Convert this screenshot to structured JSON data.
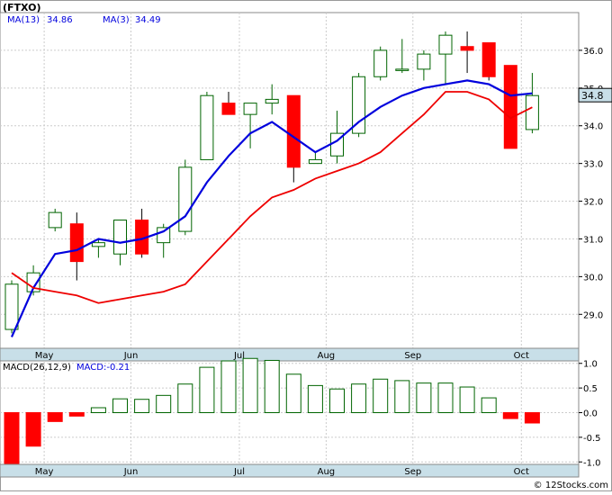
{
  "header": {
    "ticker_label": "(FTXO)",
    "ma13_label": "MA(13)",
    "ma13_value": "34.86",
    "ma3_label": "MA(3)",
    "ma3_value": "34.49"
  },
  "price_badge": "34.8",
  "macd_header": {
    "label": "MACD(26,12,9)",
    "value_label": "MACD:-0.21"
  },
  "watermark": "© 12Stocks.com",
  "colors": {
    "up_body": "#ffffff",
    "up_border": "#006400",
    "down_body": "#ff0000",
    "ma13": "#0000dd",
    "ma3": "#ee0000",
    "axis_band": "#c8dfe8",
    "grid": "#cccccc",
    "badge_bg": "#c8dfe8"
  },
  "chart_data": [
    {
      "type": "candlestick",
      "title": "(FTXO)",
      "ylim": [
        28.1,
        37.0
      ],
      "y_ticks": [
        29.0,
        30.0,
        31.0,
        32.0,
        33.0,
        34.0,
        35.0,
        36.0
      ],
      "y_tick_labels": [
        "29.0",
        "30.0",
        "31.0",
        "32.0",
        "33.0",
        "34.0",
        "35.0",
        "36.0"
      ],
      "x_labels": [
        "May",
        "Jun",
        "Jul",
        "Aug",
        "Sep",
        "Oct"
      ],
      "x_label_index": [
        1,
        5,
        10,
        14,
        18,
        23
      ],
      "candles": [
        {
          "o": 28.6,
          "h": 29.9,
          "l": 28.5,
          "c": 29.8
        },
        {
          "o": 29.6,
          "h": 30.3,
          "l": 29.5,
          "c": 30.1
        },
        {
          "o": 31.3,
          "h": 31.8,
          "l": 31.2,
          "c": 31.7
        },
        {
          "o": 31.4,
          "h": 31.7,
          "l": 29.9,
          "c": 30.4
        },
        {
          "o": 30.8,
          "h": 31.0,
          "l": 30.5,
          "c": 30.9
        },
        {
          "o": 30.6,
          "h": 31.5,
          "l": 30.3,
          "c": 31.5
        },
        {
          "o": 31.5,
          "h": 31.8,
          "l": 30.5,
          "c": 30.6
        },
        {
          "o": 30.9,
          "h": 31.4,
          "l": 30.5,
          "c": 31.3
        },
        {
          "o": 31.2,
          "h": 33.1,
          "l": 31.1,
          "c": 32.9
        },
        {
          "o": 33.1,
          "h": 34.9,
          "l": 33.1,
          "c": 34.8
        },
        {
          "o": 34.6,
          "h": 34.9,
          "l": 34.3,
          "c": 34.3
        },
        {
          "o": 34.3,
          "h": 34.6,
          "l": 33.4,
          "c": 34.6
        },
        {
          "o": 34.6,
          "h": 35.1,
          "l": 34.3,
          "c": 34.7
        },
        {
          "o": 34.8,
          "h": 34.8,
          "l": 32.5,
          "c": 32.9
        },
        {
          "o": 33.0,
          "h": 33.3,
          "l": 33.0,
          "c": 33.1
        },
        {
          "o": 33.2,
          "h": 34.4,
          "l": 33.0,
          "c": 33.8
        },
        {
          "o": 33.8,
          "h": 35.4,
          "l": 33.7,
          "c": 35.3
        },
        {
          "o": 35.3,
          "h": 36.1,
          "l": 35.2,
          "c": 36.0
        },
        {
          "o": 35.5,
          "h": 36.3,
          "l": 35.4,
          "c": 35.5
        },
        {
          "o": 35.5,
          "h": 36.0,
          "l": 35.2,
          "c": 35.9
        },
        {
          "o": 35.9,
          "h": 36.5,
          "l": 35.1,
          "c": 36.4
        },
        {
          "o": 36.1,
          "h": 36.5,
          "l": 35.4,
          "c": 36.0
        },
        {
          "o": 36.2,
          "h": 36.2,
          "l": 35.2,
          "c": 35.3
        },
        {
          "o": 35.6,
          "h": 35.6,
          "l": 33.4,
          "c": 33.4
        },
        {
          "o": 33.9,
          "h": 35.4,
          "l": 33.8,
          "c": 34.8
        }
      ],
      "ma13": [
        28.4,
        29.7,
        30.6,
        30.7,
        31.0,
        30.9,
        31.0,
        31.2,
        31.6,
        32.5,
        33.2,
        33.8,
        34.1,
        33.7,
        33.3,
        33.6,
        34.1,
        34.5,
        34.8,
        35.0,
        35.1,
        35.2,
        35.1,
        34.8,
        34.86
      ],
      "ma3": [
        30.1,
        29.7,
        29.6,
        29.5,
        29.3,
        29.4,
        29.5,
        29.6,
        29.8,
        30.4,
        31.0,
        31.6,
        32.1,
        32.3,
        32.6,
        32.8,
        33.0,
        33.3,
        33.8,
        34.3,
        34.9,
        34.9,
        34.7,
        34.2,
        34.49
      ],
      "ma13_start_index": 0,
      "ma3_start_index": 0
    },
    {
      "type": "bar",
      "title": "MACD(26,12,9)",
      "ylim": [
        -1.05,
        1.05
      ],
      "y_ticks": [
        -1.0,
        -0.5,
        0.0,
        0.5,
        1.0
      ],
      "y_tick_labels": [
        "-1.0",
        "-0.5",
        "0.0",
        "0.5",
        "1.0"
      ],
      "x_labels": [
        "May",
        "Jun",
        "Jul",
        "Aug",
        "Sep",
        "Oct"
      ],
      "x_label_index": [
        1,
        5,
        10,
        14,
        18,
        23
      ],
      "values": [
        -1.05,
        -0.68,
        -0.18,
        -0.07,
        0.1,
        0.28,
        0.27,
        0.35,
        0.58,
        0.92,
        1.05,
        1.1,
        1.06,
        0.78,
        0.55,
        0.48,
        0.58,
        0.68,
        0.65,
        0.6,
        0.6,
        0.52,
        0.3,
        -0.12,
        -0.21
      ]
    }
  ]
}
